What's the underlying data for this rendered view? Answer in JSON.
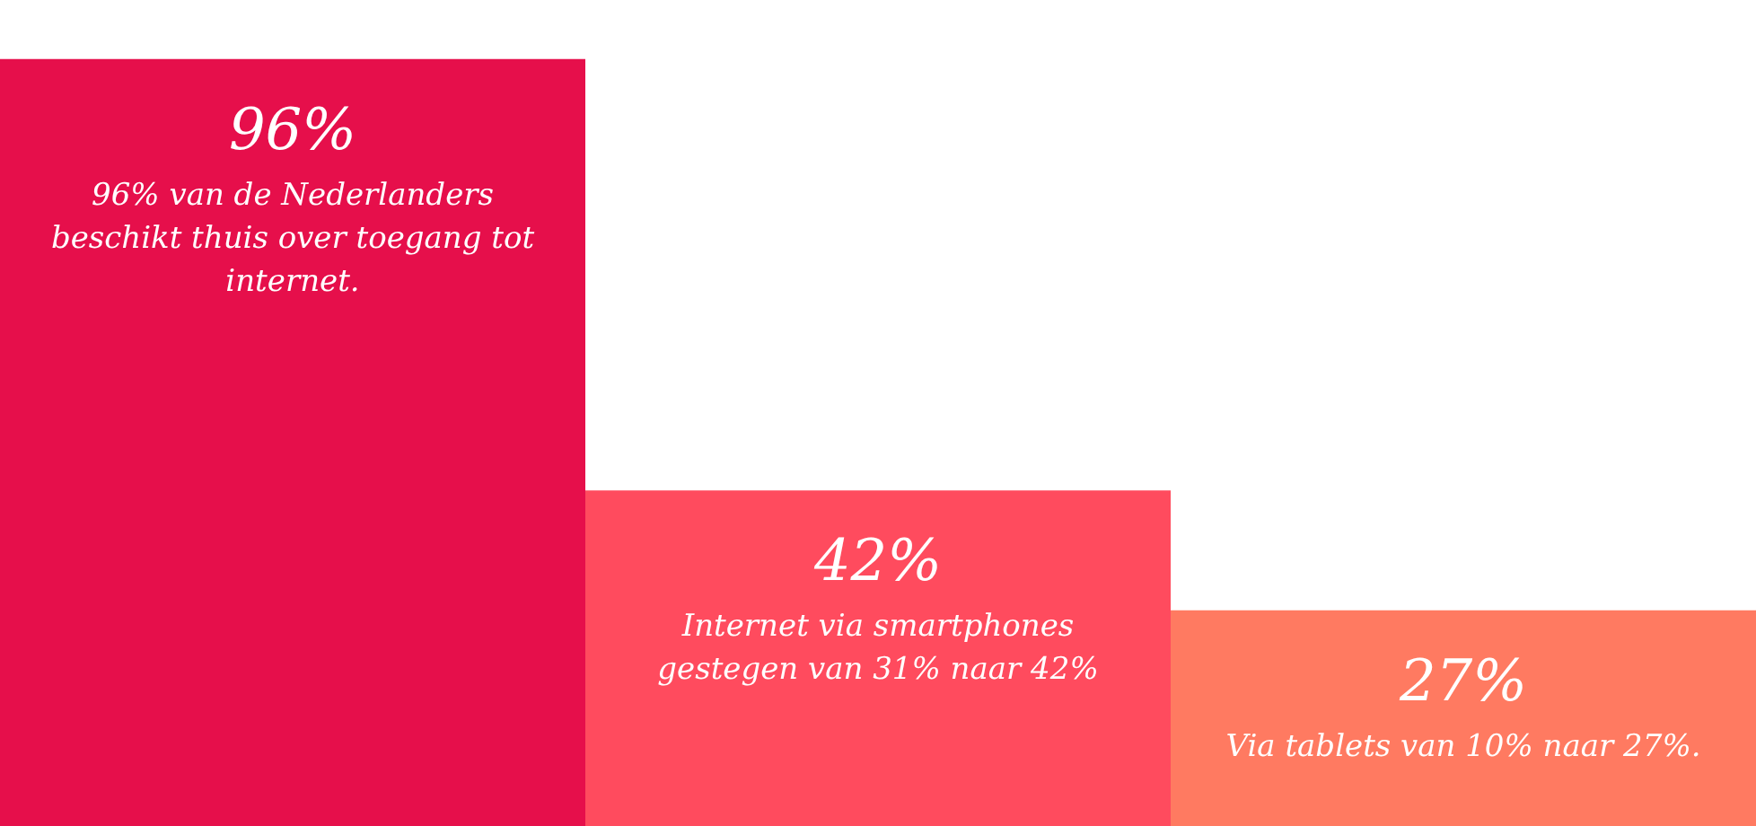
{
  "chart_data": {
    "type": "bar",
    "categories": [
      "96% van de Nederlanders beschikt thuis over toegang tot internet.",
      "Internet via smartphones gestegen van 31% naar 42%",
      "Via tablets van 10% naar 27%."
    ],
    "values": [
      96,
      42,
      27
    ],
    "value_labels": [
      "96%",
      "42%",
      "27%"
    ],
    "colors": [
      "#e60f4b",
      "#ff4b5e",
      "#ff7a61"
    ]
  }
}
